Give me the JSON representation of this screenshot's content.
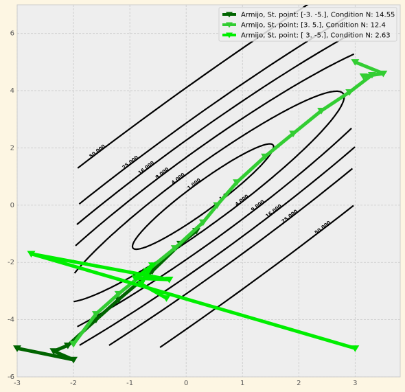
{
  "chart_data": {
    "type": "line",
    "title": "",
    "xlabel": "",
    "ylabel": "",
    "xlim": [
      -3,
      3.8
    ],
    "ylim": [
      -6,
      7
    ],
    "xticks": [
      -3,
      -2,
      -1,
      0,
      1,
      2,
      3
    ],
    "yticks": [
      -6,
      -4,
      -2,
      0,
      2,
      4,
      6
    ],
    "grid": true,
    "legend_position": "top-right",
    "contour": {
      "function": "quadratic valley along y = 1.5x",
      "levels": [
        1,
        4,
        9,
        16,
        25,
        50
      ],
      "level_labels": [
        "1.000",
        "4.000",
        "9.000",
        "16.000",
        "25.000",
        "50.000"
      ],
      "color": "#000000"
    },
    "series": [
      {
        "name": "Armijo, St. point: [-3. -5.], Condition N: 14.55",
        "color": "#006400",
        "marker": "triangle-down",
        "x": [
          -3.0,
          -2.0,
          -2.35,
          -2.1,
          -1.6,
          -1.2,
          -0.6,
          -0.1,
          0.18
        ],
        "y": [
          -5.0,
          -5.4,
          -5.1,
          -4.9,
          -4.0,
          -3.3,
          -2.3,
          -1.35,
          -0.9
        ]
      },
      {
        "name": "Armijo, St. point: [3. 5.], Condition N: 12.4",
        "color": "#32cd32",
        "marker": "triangle-down",
        "x": [
          3.0,
          3.5,
          3.15,
          3.3,
          2.9,
          2.4,
          1.9,
          1.4,
          0.9,
          0.55,
          0.3,
          -0.2,
          -0.7,
          -1.2,
          -1.6,
          -2.0
        ],
        "y": [
          5.0,
          4.6,
          4.5,
          4.55,
          3.95,
          3.3,
          2.5,
          1.7,
          0.8,
          0.0,
          -0.6,
          -1.5,
          -2.3,
          -3.1,
          -3.8,
          -4.85
        ]
      },
      {
        "name": "Armijo, St. point: [ 3. -5.], Condition N: 2.63",
        "color": "#00ee00",
        "marker": "triangle-down",
        "x": [
          3.0,
          -2.75,
          -0.3,
          -0.9,
          -0.6,
          -0.8,
          -0.35
        ],
        "y": [
          -5.0,
          -1.7,
          -2.6,
          -2.55,
          -2.1,
          -2.75,
          -3.25
        ]
      }
    ]
  }
}
